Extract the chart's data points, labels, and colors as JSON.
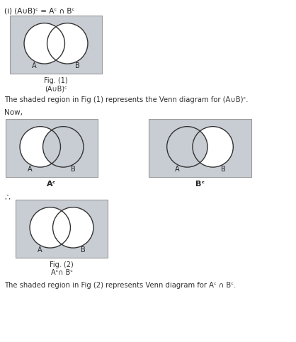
{
  "bg_color": "#ffffff",
  "shade_color": "#c8cdd4",
  "white": "#ffffff",
  "cedge": "#333333",
  "bedge": "#999999",
  "title_text": "(i) (A∪B)ᶜ = Aᶜ ∩ Bᶜ",
  "fig1_caption1": "Fig. (1)",
  "fig1_caption2": "(A∪B)ᶜ",
  "fig2_left_caption": "Aᶜ",
  "fig2_right_caption": "Bᶜ",
  "fig3_caption1": "Fig. (2)",
  "fig3_caption2": "Aᶜ∩ Bᶜ",
  "therefore_symbol": "∴",
  "text_shaded1": "The shaded region in Fig (1) represents the Venn diagram for (A∪B)ᶜ.",
  "text_now": "Now,",
  "text_shaded2": "The shaded region in Fig (2) represents Venn diagram for Aᶜ ∩ Bᶜ.",
  "label_A": "A",
  "label_B": "B",
  "title_fs": 7.5,
  "label_fs": 7,
  "caption_fs": 7,
  "body_fs": 7.2,
  "now_fs": 7.5,
  "ac_fs": 8,
  "therefore_fs": 9
}
